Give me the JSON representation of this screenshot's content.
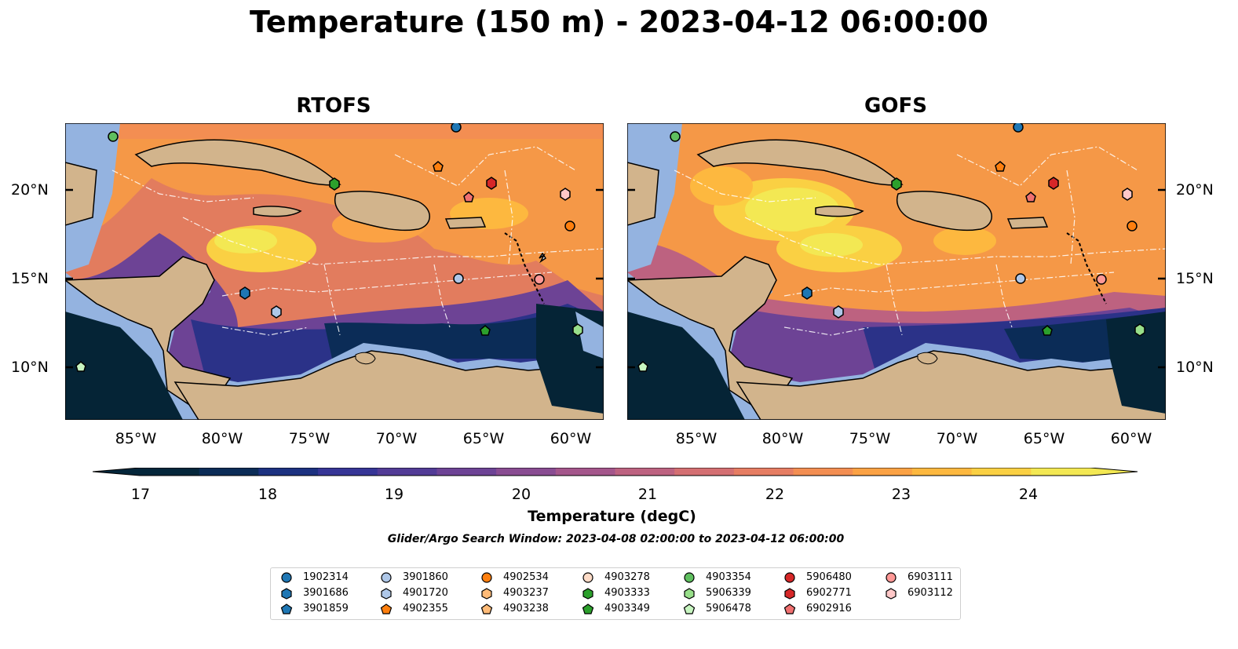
{
  "title": "Temperature (150 m) - 2023-04-12 06:00:00",
  "panels": [
    {
      "title": "RTOFS"
    },
    {
      "title": "GOFS"
    }
  ],
  "lat_labels": [
    "20°N",
    "15°N",
    "10°N"
  ],
  "lon_labels": [
    "85°W",
    "80°W",
    "75°W",
    "70°W",
    "65°W",
    "60°W"
  ],
  "colorbar": {
    "label": "Temperature (degC)",
    "ticks": [
      "17",
      "18",
      "19",
      "20",
      "21",
      "22",
      "23",
      "24"
    ],
    "colors": [
      "#04263a",
      "#0b2c57",
      "#1c3180",
      "#363596",
      "#523b96",
      "#6d4395",
      "#894c92",
      "#a4568b",
      "#bd6280",
      "#d46f72",
      "#e67d63",
      "#f38e52",
      "#fba244",
      "#fdb83f",
      "#fad043",
      "#f3e853"
    ]
  },
  "search_window": "Glider/Argo Search Window: 2023-04-08 02:00:00 to 2023-04-12 06:00:00",
  "legend": [
    {
      "label": "1902314",
      "color": "#1f77b4",
      "marker": "circle"
    },
    {
      "label": "3901686",
      "color": "#1f77b4",
      "marker": "hexagon"
    },
    {
      "label": "3901859",
      "color": "#1f77b4",
      "marker": "pentagon"
    },
    {
      "label": "3901860",
      "color": "#aec7e8",
      "marker": "circle"
    },
    {
      "label": "4901720",
      "color": "#aec7e8",
      "marker": "hexagon"
    },
    {
      "label": "4902355",
      "color": "#ff7f0e",
      "marker": "pentagon"
    },
    {
      "label": "4902534",
      "color": "#ff7f0e",
      "marker": "circle"
    },
    {
      "label": "4903237",
      "color": "#ffbb78",
      "marker": "hexagon"
    },
    {
      "label": "4903238",
      "color": "#ffbb78",
      "marker": "pentagon"
    },
    {
      "label": "4903278",
      "color": "#fddbc7",
      "marker": "circle"
    },
    {
      "label": "4903333",
      "color": "#2ca02c",
      "marker": "hexagon"
    },
    {
      "label": "4903349",
      "color": "#2ca02c",
      "marker": "pentagon"
    },
    {
      "label": "4903354",
      "color": "#5fbf5f",
      "marker": "circle"
    },
    {
      "label": "5906339",
      "color": "#98df8a",
      "marker": "hexagon"
    },
    {
      "label": "5906478",
      "color": "#c7f5c0",
      "marker": "pentagon"
    },
    {
      "label": "5906480",
      "color": "#d62728",
      "marker": "circle"
    },
    {
      "label": "6902771",
      "color": "#d62728",
      "marker": "hexagon"
    },
    {
      "label": "6902916",
      "color": "#f07070",
      "marker": "pentagon"
    },
    {
      "label": "6903111",
      "color": "#ff9896",
      "marker": "circle"
    },
    {
      "label": "6903112",
      "color": "#ffc8c8",
      "marker": "hexagon"
    }
  ]
}
